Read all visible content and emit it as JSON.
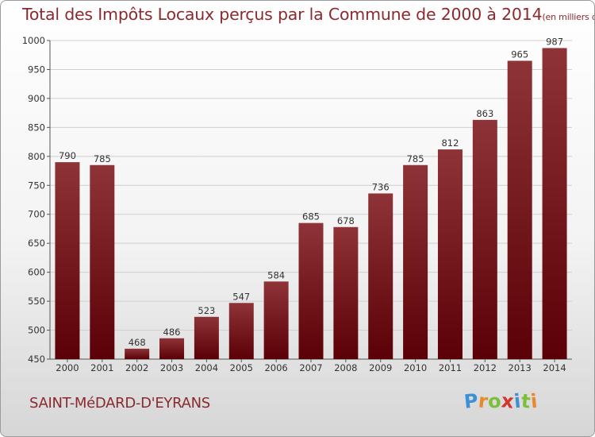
{
  "title": "Total des Impôts Locaux perçus par la Commune de 2000 à 2014",
  "title_unit": "(en milliers d'€)",
  "commune": "SAINT-MéDARD-D'EYRANS",
  "logo": {
    "letters": [
      "P",
      "r",
      "o",
      "x",
      "i",
      "t",
      "i"
    ],
    "colors": [
      "#3d8fd6",
      "#e8892a",
      "#7bbf3a",
      "#d6332e",
      "#3d8fd6",
      "#7bbf3a",
      "#e8892a"
    ]
  },
  "colors": {
    "bar_top": "#8e3438",
    "bar_bottom": "#5a0006",
    "accent": "#8b2a2e"
  },
  "chart_data": {
    "type": "bar",
    "title": "Total des Impôts Locaux perçus par la Commune de 2000 à 2014",
    "xlabel": "",
    "ylabel": "",
    "categories": [
      "2000",
      "2001",
      "2002",
      "2003",
      "2004",
      "2005",
      "2006",
      "2007",
      "2008",
      "2009",
      "2010",
      "2011",
      "2012",
      "2013",
      "2014"
    ],
    "values": [
      790,
      785,
      468,
      486,
      523,
      547,
      584,
      685,
      678,
      736,
      785,
      812,
      863,
      965,
      987
    ],
    "ylim": [
      450,
      1000
    ],
    "yticks": [
      450,
      500,
      550,
      600,
      650,
      700,
      750,
      800,
      850,
      900,
      950,
      1000
    ],
    "grid": true
  }
}
